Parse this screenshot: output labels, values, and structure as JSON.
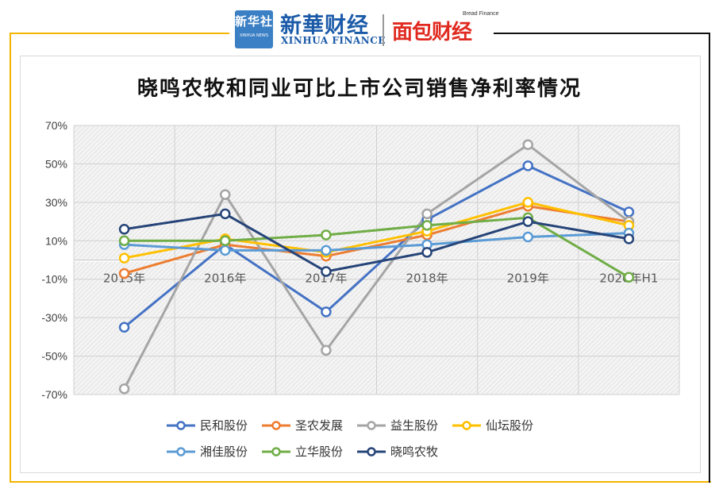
{
  "header": {
    "logo_box": {
      "line1": "新华社",
      "line2": "XINHUA NEWS"
    },
    "xinhua_cn": "新華财经",
    "xinhua_en": "XINHUA FINANCE",
    "bread_en": "Bread Finance",
    "bread_cn": "面包财经"
  },
  "chart_data": {
    "type": "line",
    "title": "晓鸣农牧和同业可比上市公司销售净利率情况",
    "categories": [
      "2015年",
      "2016年",
      "2017年",
      "2018年",
      "2019年",
      "2020年H1"
    ],
    "y_ticks": [
      "70%",
      "50%",
      "30%",
      "10%",
      "-10%",
      "-30%",
      "-50%",
      "-70%"
    ],
    "ylim": [
      -70,
      70
    ],
    "unit": "%",
    "grid": true,
    "legend_position": "bottom",
    "series": [
      {
        "name": "民和股份",
        "color": "#4472c4",
        "values": [
          -35,
          8,
          -27,
          21,
          49,
          25
        ]
      },
      {
        "name": "圣农发展",
        "color": "#ed7d31",
        "values": [
          -7,
          8,
          2,
          13,
          28,
          20
        ]
      },
      {
        "name": "益生股份",
        "color": "#a5a5a5",
        "values": [
          -67,
          34,
          -47,
          24,
          60,
          20
        ]
      },
      {
        "name": "仙坛股份",
        "color": "#ffc000",
        "values": [
          1,
          11,
          4,
          15,
          30,
          18
        ]
      },
      {
        "name": "湘佳股份",
        "color": "#5b9bd5",
        "values": [
          8,
          5,
          5,
          8,
          12,
          14
        ]
      },
      {
        "name": "立华股份",
        "color": "#70ad47",
        "values": [
          10,
          10,
          13,
          18,
          22,
          -9
        ]
      },
      {
        "name": "晓鸣农牧",
        "color": "#264478",
        "values": [
          16,
          24,
          -6,
          4,
          20,
          11
        ]
      }
    ]
  }
}
